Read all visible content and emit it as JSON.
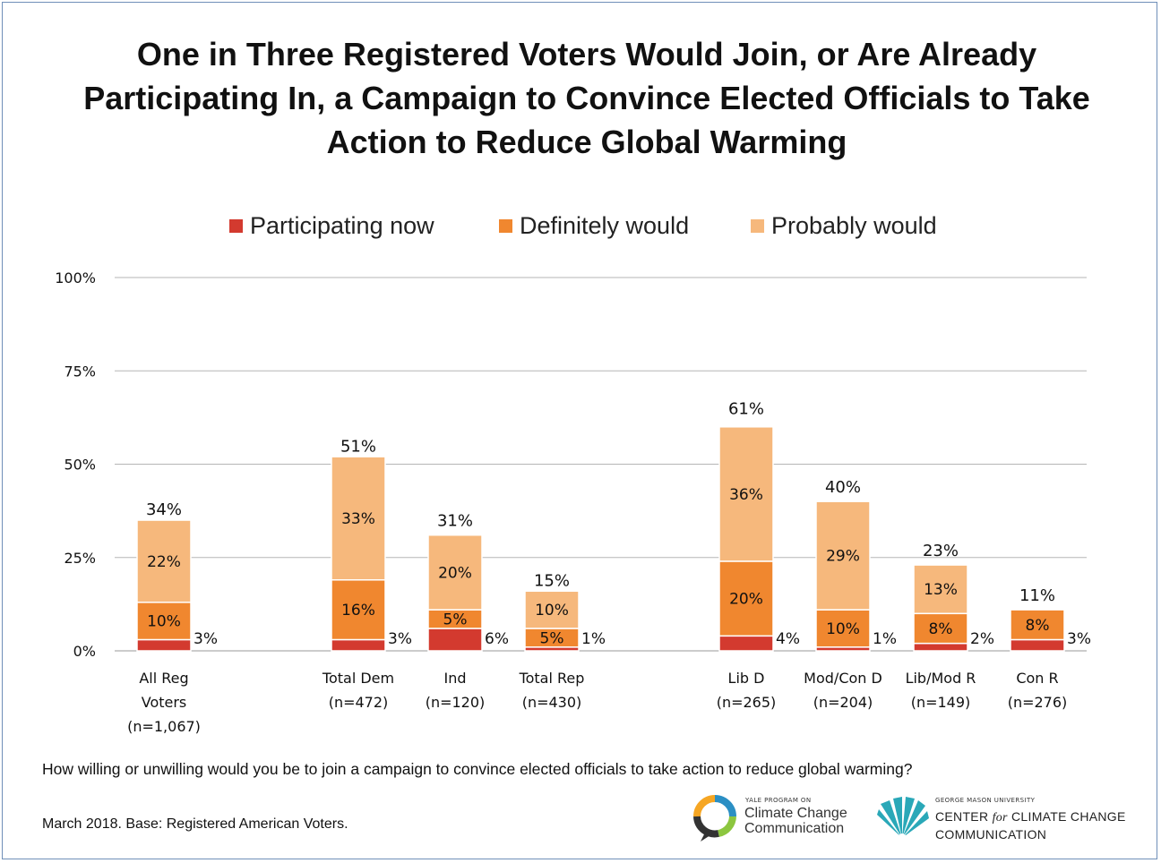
{
  "title": "One in Three Registered Voters Would Join, or Are Already Participating In, a Campaign to Convince Elected Officials to Take Action to Reduce Global Warming",
  "legend": [
    {
      "label": "Participating now",
      "color": "#d33a2f"
    },
    {
      "label": "Definitely would",
      "color": "#f0872f"
    },
    {
      "label": "Probably would",
      "color": "#f6b87c"
    }
  ],
  "chart_data": {
    "type": "bar",
    "stacked": true,
    "title": "One in Three Registered Voters Would Join, or Are Already Participating In, a Campaign to Convince Elected Officials to Take Action to Reduce Global Warming",
    "xlabel": "",
    "ylabel": "",
    "ylim": [
      0,
      100
    ],
    "yticks": [
      "0%",
      "25%",
      "50%",
      "75%",
      "100%"
    ],
    "ytick_values": [
      0,
      25,
      50,
      75,
      100
    ],
    "grid": true,
    "legend_position": "top",
    "categories": [
      {
        "lines": [
          "All Reg",
          "Voters",
          "(n=1,067)"
        ]
      },
      {
        "lines": [
          "Total Dem",
          "(n=472)"
        ]
      },
      {
        "lines": [
          "Ind",
          "(n=120)"
        ]
      },
      {
        "lines": [
          "Total Rep",
          "(n=430)"
        ]
      },
      {
        "lines": [
          "Lib D",
          "(n=265)"
        ]
      },
      {
        "lines": [
          "Mod/Con D",
          "(n=204)"
        ]
      },
      {
        "lines": [
          "Lib/Mod R",
          "(n=149)"
        ]
      },
      {
        "lines": [
          "Con R",
          "(n=276)"
        ]
      }
    ],
    "series": [
      {
        "name": "Participating now",
        "color": "#d33a2f",
        "values": [
          3,
          3,
          6,
          1,
          4,
          1,
          2,
          3
        ],
        "labels": [
          "3%",
          "3%",
          "6%",
          "1%",
          "4%",
          "1%",
          "2%",
          "3%"
        ]
      },
      {
        "name": "Definitely would",
        "color": "#f0872f",
        "values": [
          10,
          16,
          5,
          5,
          20,
          10,
          8,
          8
        ],
        "labels": [
          "10%",
          "16%",
          "5%",
          "5%",
          "20%",
          "10%",
          "8%",
          "8%"
        ]
      },
      {
        "name": "Probably would",
        "color": "#f6b87c",
        "values": [
          22,
          33,
          20,
          10,
          36,
          29,
          13,
          0
        ],
        "labels": [
          "22%",
          "33%",
          "20%",
          "10%",
          "36%",
          "29%",
          "13%",
          ""
        ]
      }
    ],
    "totals": [
      34,
      51,
      31,
      15,
      61,
      40,
      23,
      11
    ],
    "total_labels": [
      "34%",
      "51%",
      "31%",
      "15%",
      "61%",
      "40%",
      "23%",
      "11%"
    ]
  },
  "footer": {
    "question": "How willing or unwilling would you be to join a campaign to convince elected officials to take action to reduce global warming?",
    "source": "March 2018. Base: Registered American Voters."
  },
  "logos": {
    "yale_small": "YALE PROGRAM ON",
    "yale_line1": "Climate Change",
    "yale_line2": "Communication",
    "gmu_small": "GEORGE MASON UNIVERSITY",
    "gmu_line1_a": "CENTER ",
    "gmu_line1_b": "for",
    "gmu_line1_c": " CLIMATE CHANGE",
    "gmu_line2": "COMMUNICATION"
  }
}
